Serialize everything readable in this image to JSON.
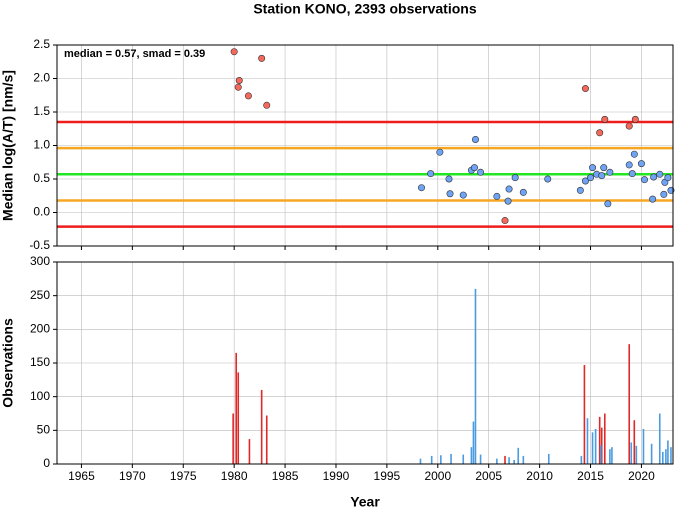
{
  "title": "Station KONO, 2393 observations",
  "chart_data": [
    {
      "type": "scatter",
      "ylabel": "Median log(A/T) [nm/s]",
      "annotation": "median = 0.57, smad = 0.39",
      "xlim": [
        1962.6,
        2023.1
      ],
      "xticks": [
        1965,
        1970,
        1975,
        1980,
        1985,
        1990,
        1995,
        2000,
        2005,
        2010,
        2015,
        2020
      ],
      "ylim": [
        -0.5,
        2.5
      ],
      "yticks": [
        {
          "value": -0.5,
          "label": "-0.5"
        },
        {
          "value": 0,
          "label": "0.0"
        },
        0.5,
        {
          "value": 1,
          "label": "1.0"
        },
        1.5,
        {
          "value": 2,
          "label": "2.0"
        },
        2.5
      ],
      "grid": true,
      "hlines": [
        {
          "value": 1.35,
          "color": "#ee1c1c"
        },
        {
          "value": 0.96,
          "color": "#f6a623"
        },
        {
          "value": 0.57,
          "color": "#22e622"
        },
        {
          "value": 0.18,
          "color": "#f6a623"
        },
        {
          "value": -0.21,
          "color": "#ee1c1c"
        }
      ],
      "series": [
        {
          "color": "#f4695c",
          "x": [
            1980.0,
            1980.4,
            1980.5,
            1981.4,
            1982.7,
            1983.2,
            2006.6,
            2014.5,
            2015.9,
            2016.4,
            2018.8,
            2019.4
          ],
          "values": [
            2.4,
            1.87,
            1.97,
            1.74,
            2.3,
            1.6,
            -0.12,
            1.85,
            1.19,
            1.39,
            1.29,
            1.39
          ]
        },
        {
          "color": "#6ea3f5",
          "x": [
            1998.4,
            1999.3,
            2000.2,
            2001.1,
            2001.2,
            2002.5,
            2003.3,
            2003.6,
            2003.7,
            2004.2,
            2005.8,
            2007.0,
            2006.9,
            2007.6,
            2008.4,
            2010.8,
            2014.0,
            2014.5,
            2015.0,
            2015.2,
            2015.6,
            2016.1,
            2016.3,
            2016.7,
            2016.9,
            2018.8,
            2019.1,
            2019.3,
            2020.0,
            2020.3,
            2021.2,
            2021.1,
            2021.8,
            2022.2,
            2022.3,
            2022.6,
            2022.9
          ],
          "values": [
            0.37,
            0.58,
            0.9,
            0.5,
            0.28,
            0.26,
            0.63,
            0.67,
            1.09,
            0.6,
            0.24,
            0.35,
            0.17,
            0.52,
            0.3,
            0.5,
            0.33,
            0.47,
            0.52,
            0.67,
            0.57,
            0.55,
            0.67,
            0.13,
            0.6,
            0.71,
            0.58,
            0.87,
            0.73,
            0.49,
            0.53,
            0.2,
            0.57,
            0.27,
            0.45,
            0.52,
            0.33
          ]
        }
      ]
    },
    {
      "type": "bar",
      "xlabel": "Year",
      "ylabel": "Observations",
      "xlim": [
        1962.6,
        2023.1
      ],
      "xticks": [
        1965,
        1970,
        1975,
        1980,
        1985,
        1990,
        1995,
        2000,
        2005,
        2010,
        2015,
        2020
      ],
      "ylim": [
        0,
        300
      ],
      "yticks": [
        0,
        50,
        100,
        150,
        200,
        250,
        300
      ],
      "grid": true,
      "series": [
        {
          "color": "#e02828",
          "x": [
            1979.9,
            1980.2,
            1980.4,
            1981.5,
            1982.7,
            1983.2,
            2006.6,
            2014.4,
            2015.9,
            2016.1,
            2016.4,
            2018.8,
            2019.3
          ],
          "values": [
            75,
            165,
            136,
            37,
            110,
            72,
            12,
            147,
            70,
            54,
            75,
            178,
            65
          ]
        },
        {
          "color": "#4a9be0",
          "x": [
            1998.3,
            1999.4,
            2000.3,
            2001.3,
            2002.5,
            2003.3,
            2003.5,
            2003.7,
            2004.2,
            2005.8,
            2007.0,
            2007.5,
            2007.9,
            2008.4,
            2010.9,
            2014.1,
            2014.7,
            2015.2,
            2015.5,
            2016.0,
            2016.9,
            2017.1,
            2019.0,
            2019.5,
            2020.2,
            2021.0,
            2021.8,
            2022.1,
            2022.4,
            2022.6,
            2022.9
          ],
          "values": [
            8,
            12,
            13,
            15,
            14,
            25,
            63,
            260,
            14,
            8,
            10,
            6,
            24,
            12,
            15,
            12,
            68,
            47,
            52,
            28,
            22,
            25,
            32,
            27,
            52,
            30,
            75,
            18,
            22,
            35,
            25
          ]
        }
      ]
    }
  ]
}
